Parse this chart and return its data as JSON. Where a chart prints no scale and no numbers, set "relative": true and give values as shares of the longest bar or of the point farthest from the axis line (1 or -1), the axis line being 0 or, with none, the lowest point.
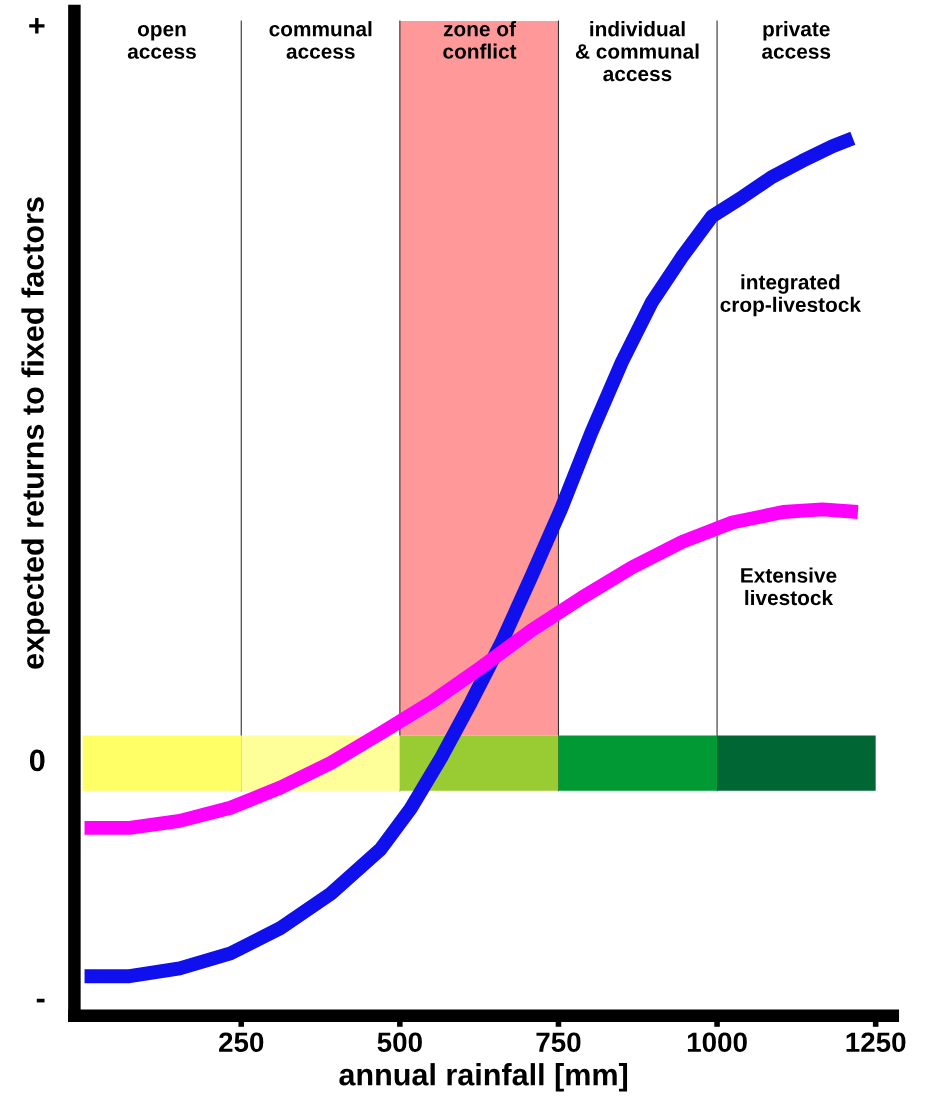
{
  "chart_data": {
    "type": "line",
    "relative": true,
    "xlabel": "annual rainfall [mm]",
    "ylabel": "expected returns to fixed factors",
    "xlim": [
      -13,
      1277
    ],
    "xticks": [
      250,
      500,
      750,
      1000,
      1250
    ],
    "grid": false,
    "legend": false,
    "annotations": [
      "+",
      "0",
      "-",
      "open\naccess",
      "communal\naccess",
      "zone of\nconflict",
      "individual\n& communal\naccess",
      "private\naccess"
    ],
    "bands": [
      {
        "axis": "x",
        "from": 500,
        "to": 750,
        "color": "#ff9999"
      },
      {
        "axis": "x",
        "from": 0,
        "to": 250,
        "color": "#ffff66"
      },
      {
        "axis": "x",
        "from": 250,
        "to": 500,
        "color": "#ffff99"
      },
      {
        "axis": "x",
        "from": 500,
        "to": 750,
        "color": "#99cc33"
      },
      {
        "axis": "x",
        "from": 750,
        "to": 1000,
        "color": "#009933"
      },
      {
        "axis": "x",
        "from": 1000,
        "to": 1250,
        "color": "#006633"
      }
    ],
    "ref_lines": [
      {
        "axis": "x",
        "value": 250,
        "color": "#333333"
      },
      {
        "axis": "x",
        "value": 500,
        "color": "#333333"
      },
      {
        "axis": "x",
        "value": 750,
        "color": "#333333"
      },
      {
        "axis": "x",
        "value": 1000,
        "color": "#333333"
      }
    ],
    "series": [
      {
        "name": "integrated\ncrop-livestock",
        "color": "#1010ee",
        "x": [
          3,
          74,
          153,
          233,
          312,
          391,
          470,
          517,
          565,
          612,
          660,
          707,
          755,
          802,
          850,
          897,
          945,
          992,
          1040,
          1087,
          1134,
          1182,
          1214
        ],
        "values": [
          0.045,
          0.045,
          0.054,
          0.071,
          0.1,
          0.139,
          0.19,
          0.236,
          0.294,
          0.357,
          0.425,
          0.5,
          0.579,
          0.665,
          0.745,
          0.813,
          0.865,
          0.911,
          0.933,
          0.956,
          0.974,
          0.991,
          1
        ]
      },
      {
        "name": "Extensive\nlivestock",
        "color": "#ff00ff",
        "x": [
          3,
          74,
          153,
          233,
          312,
          391,
          470,
          549,
          628,
          707,
          786,
          866,
          945,
          1024,
          1104,
          1166,
          1222
        ],
        "values": [
          0.214,
          0.214,
          0.222,
          0.237,
          0.26,
          0.288,
          0.322,
          0.357,
          0.397,
          0.439,
          0.476,
          0.511,
          0.54,
          0.562,
          0.574,
          0.577,
          0.574
        ]
      }
    ]
  }
}
